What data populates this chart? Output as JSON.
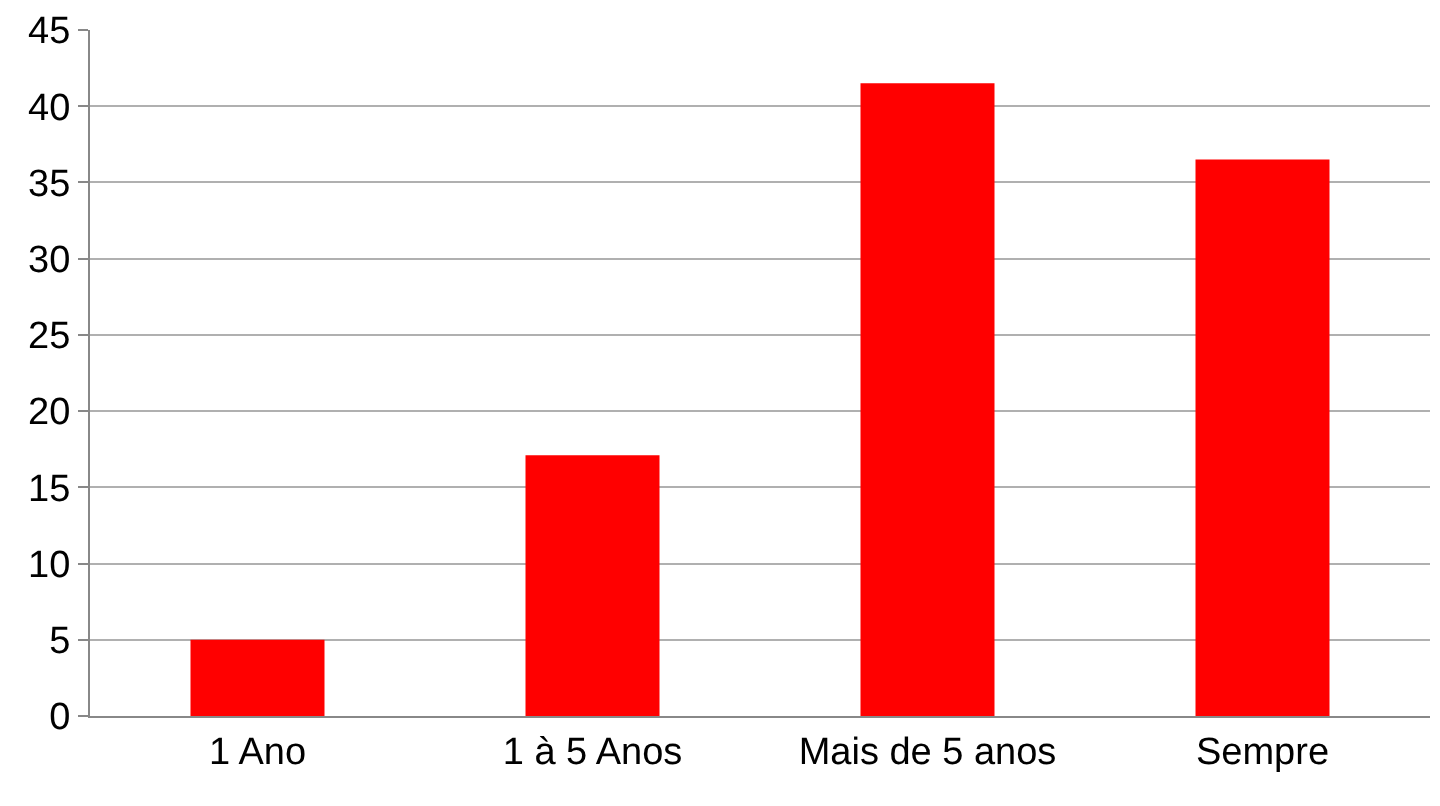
{
  "chart_data": {
    "type": "bar",
    "categories": [
      "1 Ano",
      "1 à 5 Anos",
      "Mais de 5 anos",
      "Sempre"
    ],
    "values": [
      5,
      17.1,
      41.5,
      36.5
    ],
    "color": "#ff0000",
    "ylim": [
      0,
      45
    ],
    "yticks": [
      0,
      5,
      10,
      15,
      20,
      25,
      30,
      35,
      40,
      45
    ],
    "grid": "y"
  }
}
